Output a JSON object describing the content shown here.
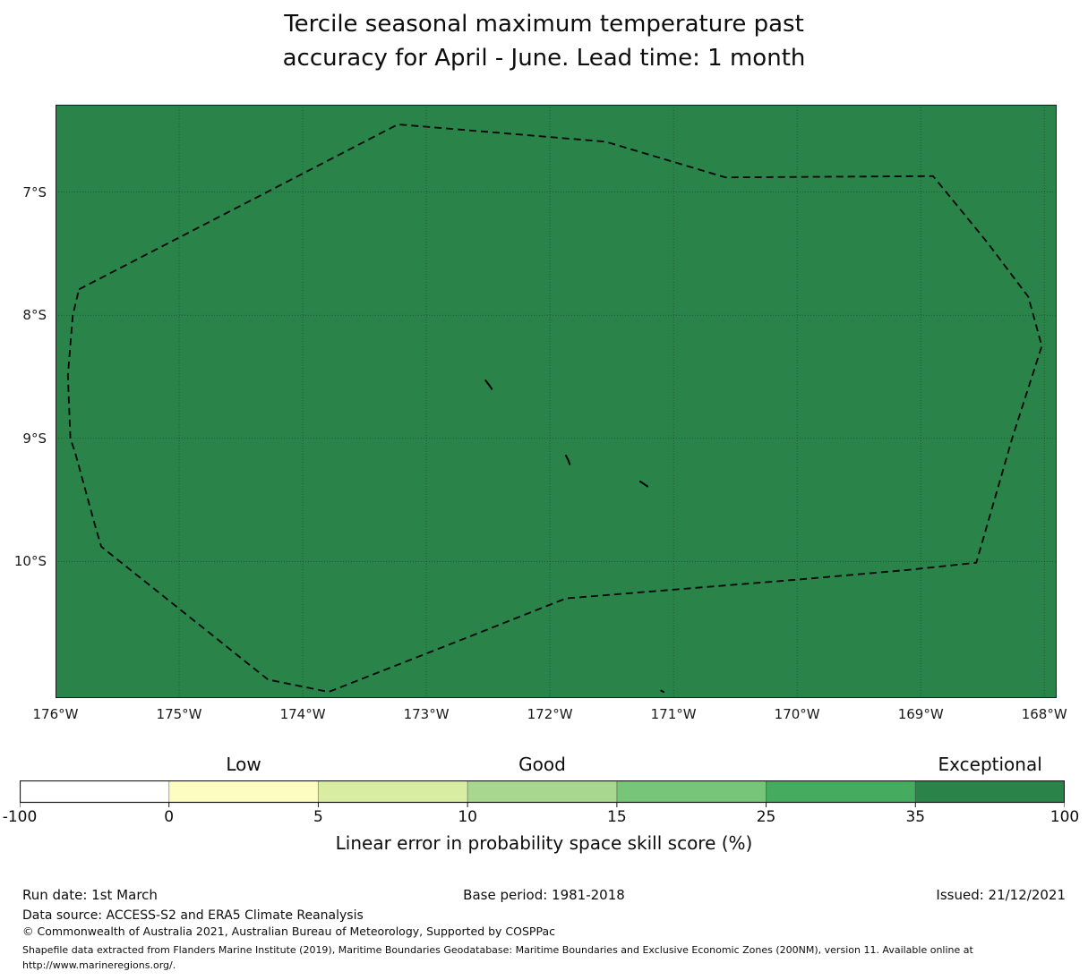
{
  "title": {
    "line1": "Tercile seasonal maximum temperature past",
    "line2": "accuracy for April - June. Lead time: 1 month"
  },
  "chart_data": {
    "type": "heatmap",
    "title": "Tercile seasonal maximum temperature past accuracy for April - June. Lead time: 1 month",
    "xlabel": "",
    "ylabel": "",
    "x_tick_labels": [
      "176°W",
      "175°W",
      "174°W",
      "173°W",
      "172°W",
      "171°W",
      "170°W",
      "169°W",
      "168°W"
    ],
    "y_tick_labels": [
      "7°S",
      "8°S",
      "9°S",
      "10°S"
    ],
    "lon_range": [
      -176.0,
      -167.9
    ],
    "lat_range": [
      -11.11,
      -6.29
    ],
    "grid": true,
    "value_field": "Linear error in probability space skill score (%)",
    "region_value_bin": "35-100",
    "legend_position": "bottom",
    "colorbar_bins": [
      -100,
      0,
      5,
      10,
      15,
      25,
      35,
      100
    ],
    "colorbar_categories": [
      "Low",
      "Good",
      "Exceptional"
    ]
  },
  "map": {
    "fill_color": "#2a8449",
    "frame_color": "#1a1a1a",
    "gridline_color": "rgba(0,0,0,0.38)",
    "boundary_color": "#0a0a0a",
    "extent": {
      "lon_min": -176.0,
      "lon_max": -167.9,
      "lat_min": -11.11,
      "lat_max": -6.29
    },
    "x_ticks": [
      {
        "lon": -176,
        "label": "176°W"
      },
      {
        "lon": -175,
        "label": "175°W"
      },
      {
        "lon": -174,
        "label": "174°W"
      },
      {
        "lon": -173,
        "label": "173°W"
      },
      {
        "lon": -172,
        "label": "172°W"
      },
      {
        "lon": -171,
        "label": "171°W"
      },
      {
        "lon": -170,
        "label": "170°W"
      },
      {
        "lon": -169,
        "label": "169°W"
      },
      {
        "lon": -168,
        "label": "168°W"
      }
    ],
    "y_ticks": [
      {
        "lat": -7,
        "label": "7°S"
      },
      {
        "lat": -8,
        "label": "8°S"
      },
      {
        "lat": -9,
        "label": "9°S"
      },
      {
        "lat": -10,
        "label": "10°S"
      }
    ],
    "grid_lons": [
      -175,
      -174,
      -173,
      -172,
      -171,
      -170,
      -169,
      -168
    ],
    "grid_lats": [
      -7,
      -8,
      -9,
      -10
    ],
    "eez_boundary": [
      [
        -175.81,
        -7.79
      ],
      [
        -173.23,
        -6.45
      ],
      [
        -171.55,
        -6.59
      ],
      [
        -170.58,
        -6.88
      ],
      [
        -168.9,
        -6.87
      ],
      [
        -168.46,
        -7.41
      ],
      [
        -168.13,
        -7.85
      ],
      [
        -168.02,
        -8.25
      ],
      [
        -168.26,
        -9.0
      ],
      [
        -168.55,
        -10.01
      ],
      [
        -169.11,
        -10.07
      ],
      [
        -170.03,
        -10.15
      ],
      [
        -171.87,
        -10.3
      ],
      [
        -172.7,
        -10.63
      ],
      [
        -173.79,
        -11.06
      ],
      [
        -174.28,
        -10.96
      ],
      [
        -175.63,
        -9.88
      ],
      [
        -175.68,
        -9.71
      ],
      [
        -175.84,
        -9.12
      ],
      [
        -175.88,
        -9.0
      ],
      [
        -175.9,
        -8.49
      ],
      [
        -175.86,
        -8.0
      ]
    ],
    "island_marks": [
      [
        [
          -172.52,
          -8.53
        ],
        [
          -172.49,
          -8.57
        ],
        [
          -172.47,
          -8.6
        ]
      ],
      [
        [
          -171.87,
          -9.14
        ],
        [
          -171.85,
          -9.18
        ],
        [
          -171.84,
          -9.21
        ]
      ],
      [
        [
          -171.27,
          -9.35
        ],
        [
          -171.21,
          -9.39
        ]
      ],
      [
        [
          -171.1,
          -11.05
        ],
        [
          -171.08,
          -11.06
        ]
      ]
    ]
  },
  "colorbar": {
    "axis_label": "Linear error in probability space skill score (%)",
    "outline_color": "#1a1a1a",
    "separator_color": "rgba(0,0,0,0.35)",
    "tick_labels": [
      "-100",
      "0",
      "5",
      "10",
      "15",
      "25",
      "35",
      "100"
    ],
    "segments": [
      {
        "from": "-100",
        "to": "0",
        "color": "#ffffff"
      },
      {
        "from": "0",
        "to": "5",
        "color": "#fdfdc2"
      },
      {
        "from": "5",
        "to": "10",
        "color": "#d9eda2"
      },
      {
        "from": "10",
        "to": "15",
        "color": "#a8d88f"
      },
      {
        "from": "15",
        "to": "25",
        "color": "#76c578"
      },
      {
        "from": "25",
        "to": "35",
        "color": "#45ab5e"
      },
      {
        "from": "35",
        "to": "100",
        "color": "#2a8449"
      }
    ],
    "category_labels": [
      {
        "text": "Low",
        "segment_index": 1
      },
      {
        "text": "Good",
        "segment_index": 3
      },
      {
        "text": "Exceptional",
        "segment_index": 6
      }
    ]
  },
  "footer": {
    "run_date": "Run date: 1st March",
    "base_period": "Base period: 1981-2018",
    "issued": "Issued: 21/12/2021",
    "data_source": "Data source: ACCESS-S2 and ERA5 Climate Reanalysis",
    "copyright": "© Commonwealth of Australia 2021, Australian Bureau of Meteorology, Supported by COSPPac",
    "shapefile_line1": "Shapefile data extracted from Flanders Marine Institute (2019), Maritime Boundaries Geodatabase: Maritime Boundaries and Exclusive Economic Zones (200NM), version 11. Available online at",
    "shapefile_line2": "http://www.marineregions.org/."
  }
}
